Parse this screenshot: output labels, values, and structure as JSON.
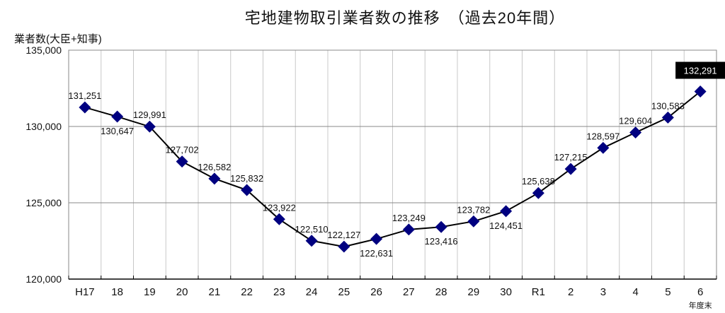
{
  "chart_data": {
    "type": "line",
    "title": "宅地建物取引業者数の推移　（過去20年間）",
    "ylabel": "業者数(大臣+知事)",
    "xlabel_suffix": "年度末",
    "categories": [
      "H17",
      "18",
      "19",
      "20",
      "21",
      "22",
      "23",
      "24",
      "25",
      "26",
      "27",
      "28",
      "29",
      "30",
      "R1",
      "2",
      "3",
      "4",
      "5",
      "6"
    ],
    "values": [
      131251,
      130647,
      129991,
      127702,
      126582,
      125832,
      123922,
      122510,
      122127,
      122631,
      123249,
      123416,
      123782,
      124451,
      125638,
      127215,
      128597,
      129604,
      130583,
      132291
    ],
    "data_labels": [
      "131,251",
      "130,647",
      "129,991",
      "127,702",
      "126,582",
      "125,832",
      "123,922",
      "122,510",
      "122,127",
      "122,631",
      "123,249",
      "123,416",
      "123,782",
      "124,451",
      "125,638",
      "127,215",
      "128,597",
      "129,604",
      "130,583",
      "132,291"
    ],
    "label_below": [
      false,
      true,
      false,
      false,
      false,
      false,
      false,
      false,
      false,
      true,
      false,
      true,
      false,
      true,
      false,
      false,
      false,
      false,
      false,
      false
    ],
    "highlight_last": true,
    "ylim": [
      120000,
      135000
    ],
    "yticks": [
      120000,
      125000,
      130000,
      135000
    ],
    "ytick_labels": [
      "120,000",
      "125,000",
      "130,000",
      "135,000"
    ],
    "grid": true,
    "colors": {
      "line": "#000000",
      "marker": "#000080",
      "highlight_bg": "#000000",
      "highlight_text": "#ffffff"
    }
  }
}
